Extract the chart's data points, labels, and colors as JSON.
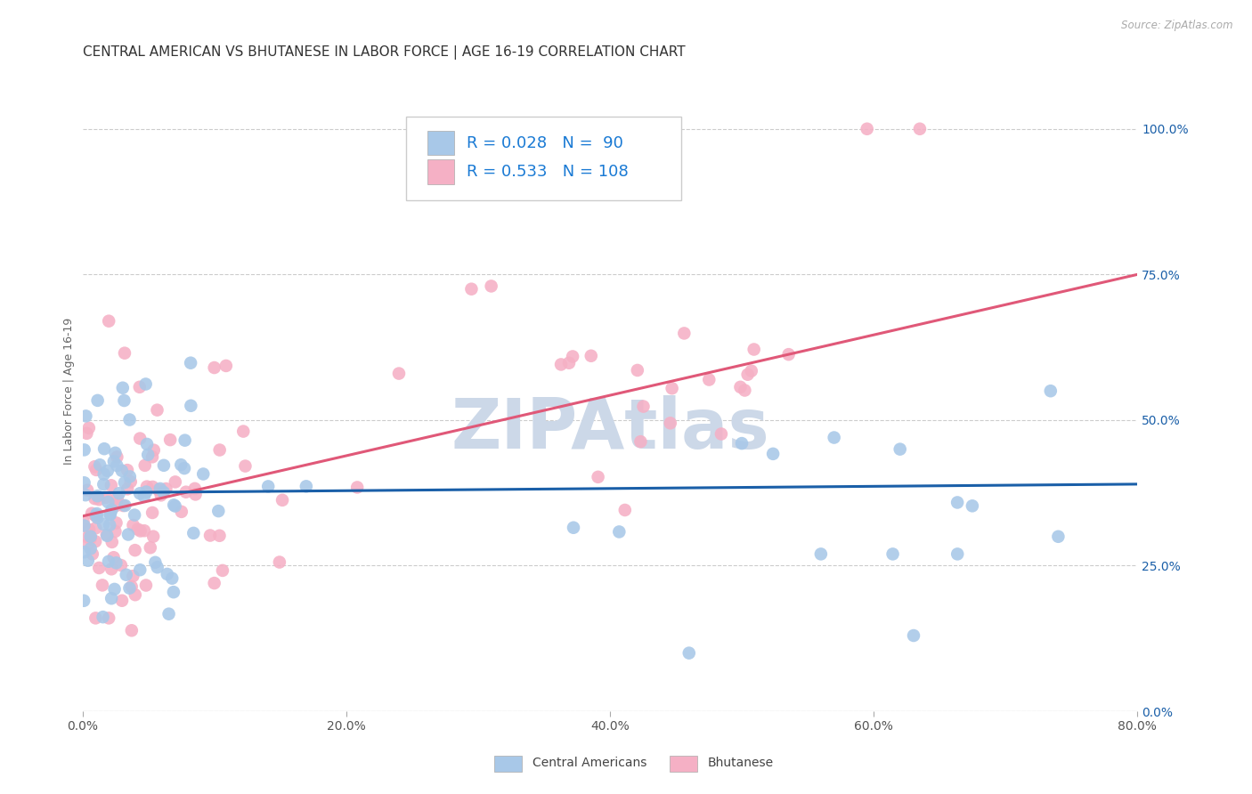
{
  "title": "CENTRAL AMERICAN VS BHUTANESE IN LABOR FORCE | AGE 16-19 CORRELATION CHART",
  "source": "Source: ZipAtlas.com",
  "ylabel": "In Labor Force | Age 16-19",
  "xlabel_ticks_vals": [
    0.0,
    0.2,
    0.4,
    0.6,
    0.8
  ],
  "xlabel_ticks_labels": [
    "0.0%",
    "20.0%",
    "40.0%",
    "60.0%",
    "80.0%"
  ],
  "ylabel_ticks_vals": [
    0.0,
    0.25,
    0.5,
    0.75,
    1.0
  ],
  "ylabel_ticks_labels": [
    "0.0%",
    "25.0%",
    "50.0%",
    "75.0%",
    "100.0%"
  ],
  "xmin": 0.0,
  "xmax": 0.8,
  "ymin": 0.0,
  "ymax": 1.1,
  "blue_R": 0.028,
  "blue_N": 90,
  "pink_R": 0.533,
  "pink_N": 108,
  "blue_color": "#a8c8e8",
  "pink_color": "#f5b0c5",
  "blue_line_color": "#1a5fa8",
  "pink_line_color": "#e05878",
  "legend_R_color": "#1a7ad4",
  "background_color": "#ffffff",
  "grid_color": "#cccccc",
  "watermark_text": "ZIPAtlas",
  "watermark_color": "#ccd8e8",
  "title_fontsize": 11,
  "axis_label_fontsize": 9,
  "tick_fontsize": 10,
  "legend_fontsize": 13,
  "blue_line_y_start": 0.375,
  "blue_line_y_end": 0.39,
  "pink_line_y_start": 0.335,
  "pink_line_y_end": 0.75
}
